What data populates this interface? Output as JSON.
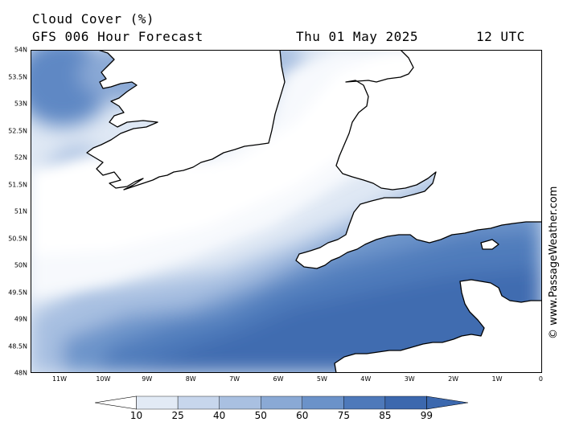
{
  "header": {
    "title": "Cloud Cover (%)",
    "subtitle": "GFS 006 Hour Forecast",
    "date": "Thu 01 May 2025",
    "time": "12 UTC"
  },
  "map": {
    "lat_labels": [
      "54N",
      "53.5N",
      "53N",
      "52.5N",
      "52N",
      "51.5N",
      "51N",
      "50.5N",
      "50N",
      "49.5N",
      "49N",
      "48.5N",
      "48N"
    ],
    "lon_labels": [
      "11W",
      "10W",
      "9W",
      "8W",
      "7W",
      "6W",
      "5W",
      "4W",
      "3W",
      "2W",
      "1W",
      "0"
    ],
    "land_color": "#ffffff",
    "coast_color": "#000000"
  },
  "legend": {
    "ticks": [
      "10",
      "25",
      "40",
      "50",
      "60",
      "75",
      "85",
      "99"
    ],
    "colors": [
      "#ffffff",
      "#e2eaf5",
      "#c7d6ec",
      "#a9c0e1",
      "#8aa9d5",
      "#6b92c9",
      "#4e79ba",
      "#3c68ae"
    ]
  },
  "watermark": "© www.PassageWeather.com"
}
